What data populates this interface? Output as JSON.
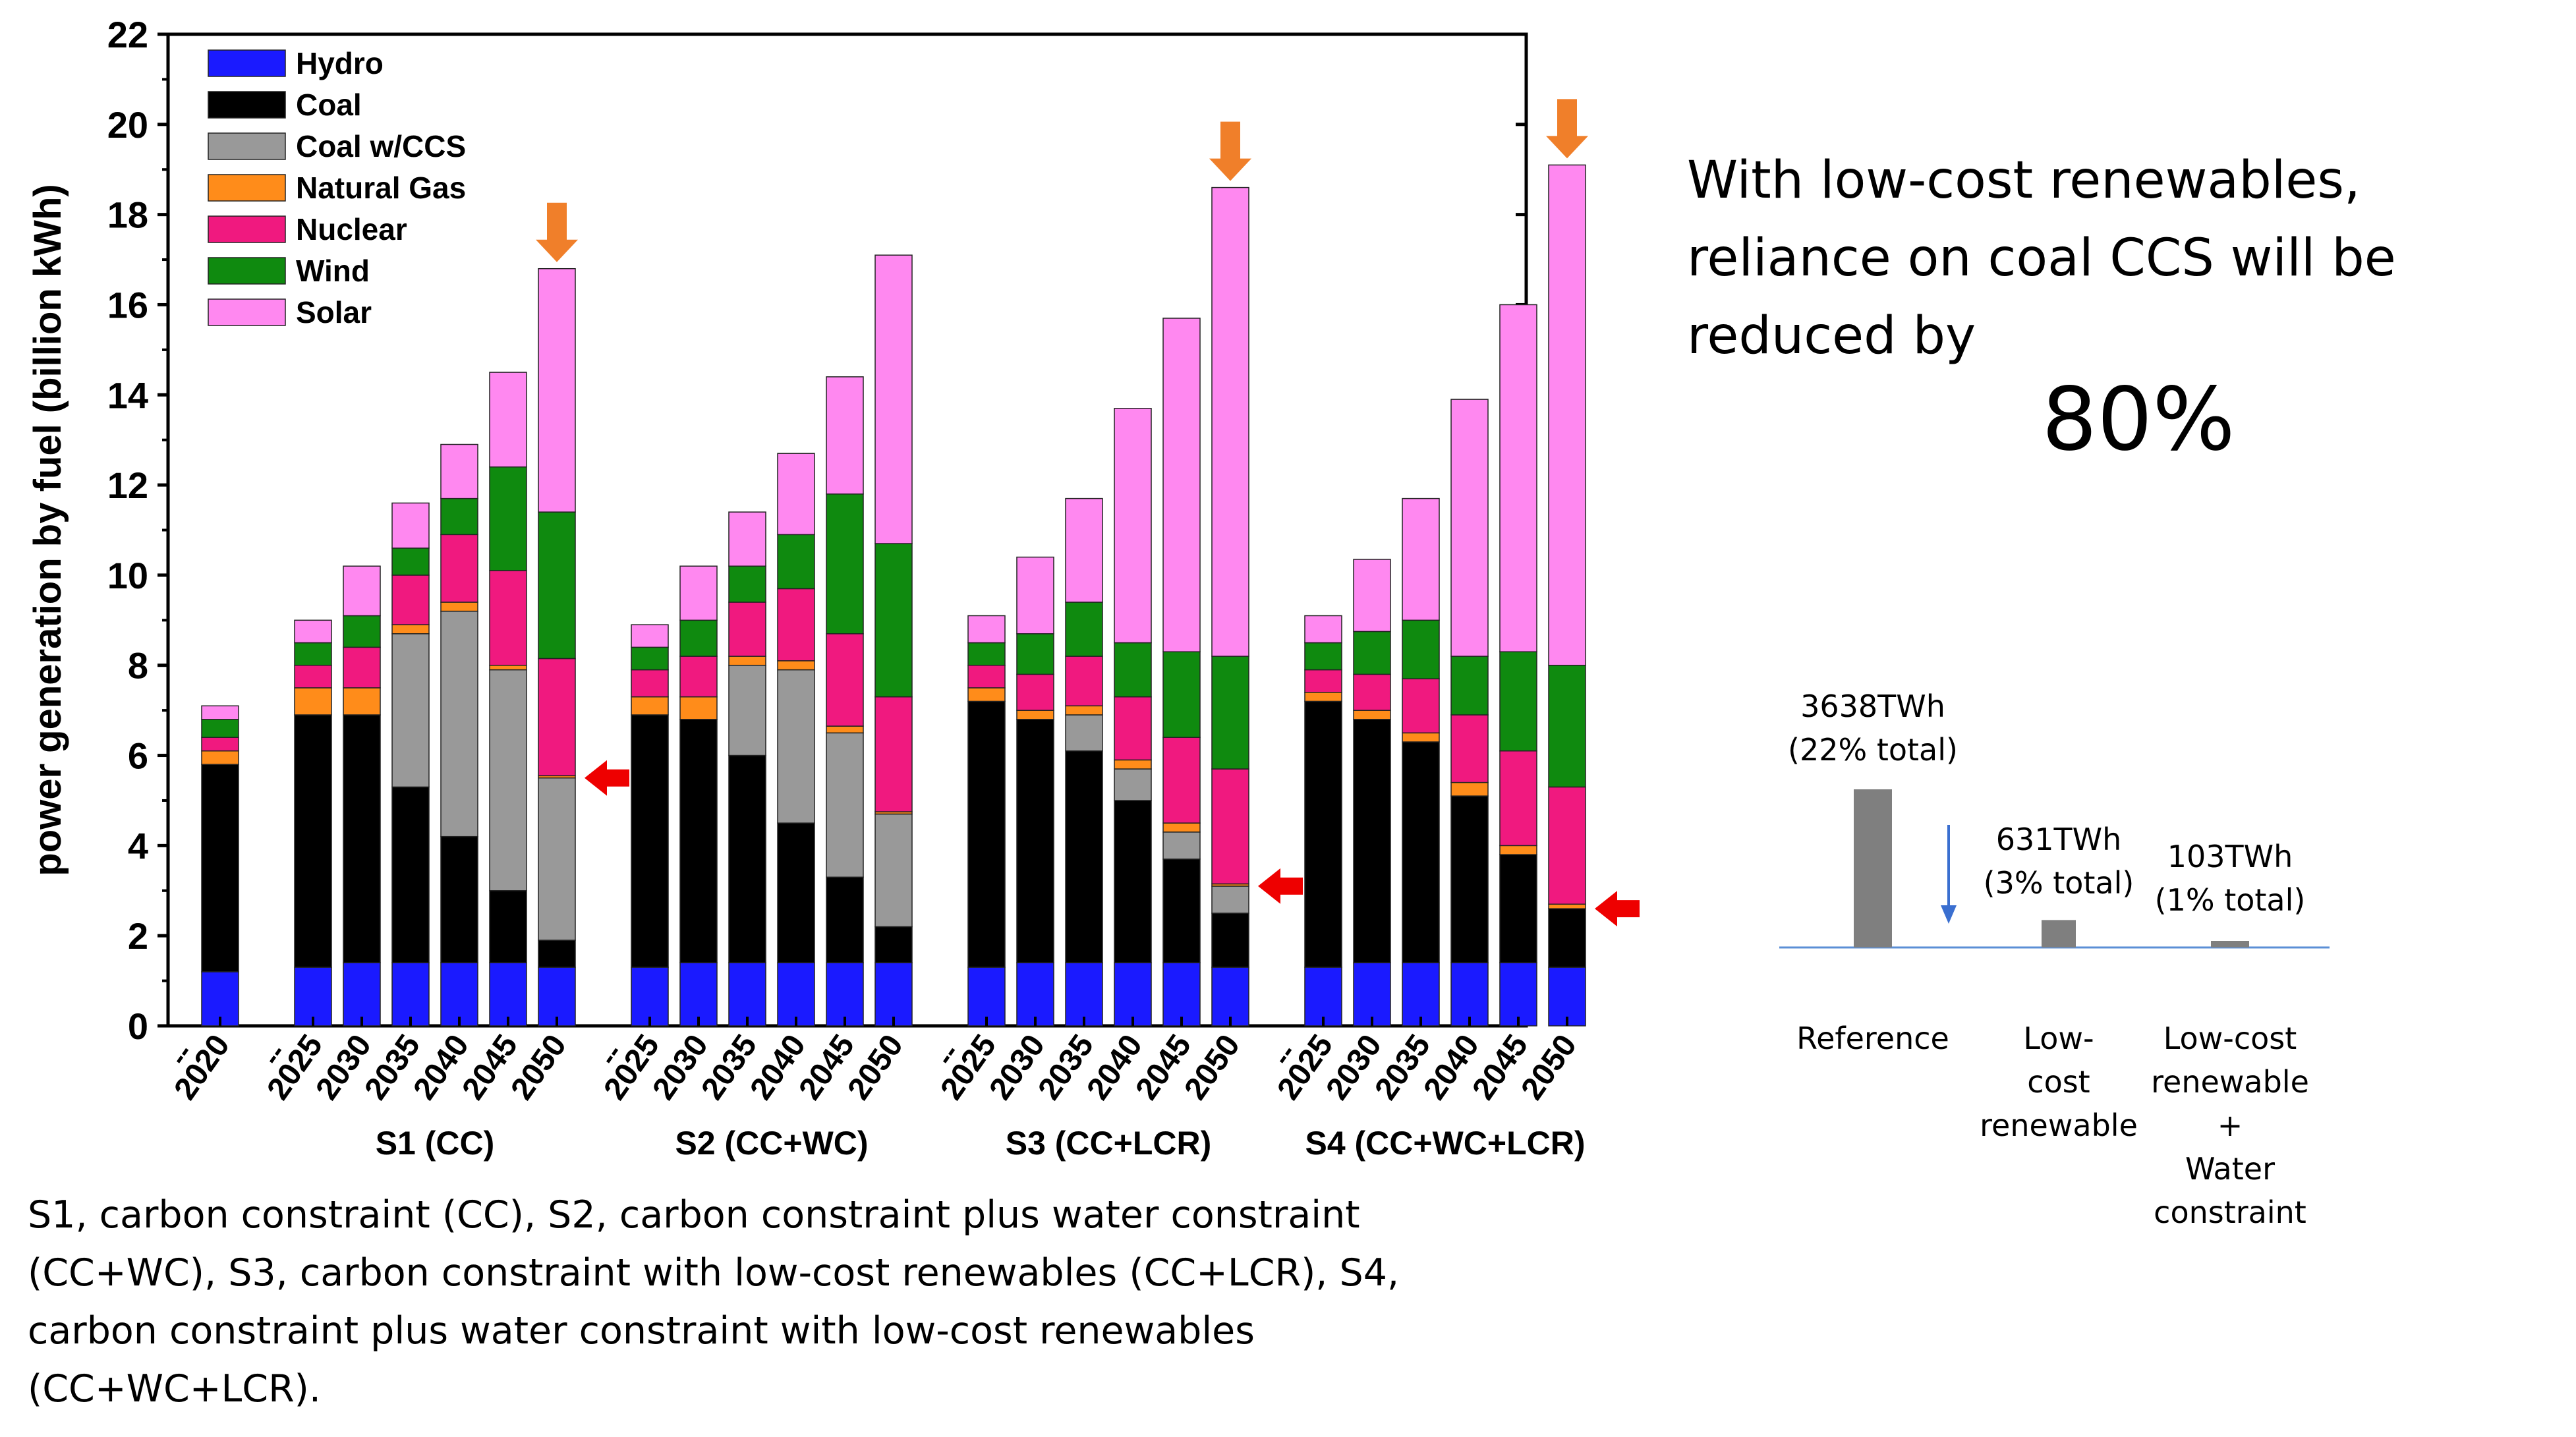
{
  "chart_data": {
    "type": "bar",
    "stacked": true,
    "ylabel": "power generation by fuel (billion kWh)",
    "ylim": [
      0,
      22
    ],
    "yticks": [
      "0",
      "2",
      "4",
      "6",
      "8",
      "10",
      "12",
      "14",
      "16",
      "18",
      "20",
      "22"
    ],
    "legend": [
      {
        "name": "Hydro",
        "color": "#1a1aff"
      },
      {
        "name": "Coal",
        "color": "#000000"
      },
      {
        "name": "Coal w/CCS",
        "color": "#999999"
      },
      {
        "name": "Natural Gas",
        "color": "#ff8c1a"
      },
      {
        "name": "Nuclear",
        "color": "#f0197f"
      },
      {
        "name": "Wind",
        "color": "#0f8a0f"
      },
      {
        "name": "Solar",
        "color": "#ff88f0"
      }
    ],
    "groups": [
      {
        "name": "",
        "years": [
          "2020"
        ],
        "bars": [
          [
            1.2,
            4.6,
            0,
            0.3,
            0.3,
            0.4,
            0.3
          ]
        ]
      },
      {
        "name": "S1 (CC)",
        "years": [
          "2025",
          "2030",
          "2035",
          "2040",
          "2045",
          "2050"
        ],
        "bars": [
          [
            1.3,
            5.6,
            0,
            0.6,
            0.5,
            0.5,
            0.5
          ],
          [
            1.4,
            5.5,
            0,
            0.6,
            0.9,
            0.7,
            1.1
          ],
          [
            1.4,
            3.9,
            3.4,
            0.2,
            1.1,
            0.6,
            1.0
          ],
          [
            1.4,
            2.8,
            5.0,
            0.2,
            1.5,
            0.8,
            1.2
          ],
          [
            1.4,
            1.6,
            4.9,
            0.1,
            2.1,
            2.3,
            2.1
          ],
          [
            1.3,
            0.6,
            3.6,
            0.05,
            2.6,
            3.25,
            5.4
          ]
        ]
      },
      {
        "name": "S2 (CC+WC)",
        "years": [
          "2025",
          "2030",
          "2035",
          "2040",
          "2045",
          "2050"
        ],
        "bars": [
          [
            1.3,
            5.6,
            0,
            0.4,
            0.6,
            0.5,
            0.5
          ],
          [
            1.4,
            5.4,
            0,
            0.5,
            0.9,
            0.8,
            1.2
          ],
          [
            1.4,
            4.6,
            2.0,
            0.2,
            1.2,
            0.8,
            1.2
          ],
          [
            1.4,
            3.1,
            3.4,
            0.2,
            1.6,
            1.2,
            1.8
          ],
          [
            1.4,
            1.9,
            3.2,
            0.15,
            2.05,
            3.1,
            2.6
          ],
          [
            1.4,
            0.8,
            2.5,
            0.05,
            2.55,
            3.4,
            6.4
          ]
        ]
      },
      {
        "name": "S3 (CC+LCR)",
        "years": [
          "2025",
          "2030",
          "2035",
          "2040",
          "2045",
          "2050"
        ],
        "bars": [
          [
            1.3,
            5.9,
            0,
            0.3,
            0.5,
            0.5,
            0.6
          ],
          [
            1.4,
            5.4,
            0,
            0.2,
            0.8,
            0.9,
            1.7
          ],
          [
            1.4,
            4.7,
            0.8,
            0.2,
            1.1,
            1.2,
            2.3
          ],
          [
            1.4,
            3.6,
            0.7,
            0.2,
            1.4,
            1.2,
            5.2
          ],
          [
            1.4,
            2.3,
            0.6,
            0.2,
            1.9,
            1.9,
            7.4
          ],
          [
            1.3,
            1.2,
            0.6,
            0.05,
            2.55,
            2.5,
            10.4
          ]
        ]
      },
      {
        "name": "S4 (CC+WC+LCR)",
        "years": [
          "2025",
          "2030",
          "2035",
          "2040",
          "2045",
          "2050"
        ],
        "bars": [
          [
            1.3,
            5.9,
            0,
            0.2,
            0.5,
            0.6,
            0.6
          ],
          [
            1.4,
            5.4,
            0,
            0.2,
            0.8,
            0.95,
            1.6
          ],
          [
            1.4,
            4.9,
            0,
            0.2,
            1.2,
            1.3,
            2.7
          ],
          [
            1.4,
            3.7,
            0,
            0.3,
            1.5,
            1.3,
            5.7
          ],
          [
            1.4,
            2.4,
            0,
            0.2,
            2.1,
            2.2,
            7.7
          ],
          [
            1.3,
            1.3,
            0,
            0.1,
            2.6,
            2.7,
            11.1
          ]
        ]
      }
    ]
  },
  "text": {
    "headline": "With low-cost renewables, reliance on coal CCS will be reduced by",
    "percent": "80%",
    "caption": "S1, carbon constraint (CC), S2, carbon constraint plus water constraint (CC+WC), S3, carbon constraint with low-cost renewables (CC+LCR), S4, carbon constraint plus water constraint with low-cost renewables (CC+WC+LCR)."
  },
  "colors": {
    "down_arrow": "#f07f2a",
    "side_arrow": "#ee0000",
    "mini_bar": "#7f7f7f",
    "mini_axis": "#5b8fd6",
    "mini_arrow": "#3a6fd0"
  },
  "mini_chart": {
    "bars": [
      {
        "value": 3638,
        "value_label": "3638TWh",
        "share_label": "(22% total)",
        "category": [
          "Reference"
        ]
      },
      {
        "value": 631,
        "value_label": "631TWh",
        "share_label": "(3% total)",
        "category": [
          "Low-",
          "cost",
          "renewable"
        ]
      },
      {
        "value": 103,
        "value_label": "103TWh",
        "share_label": "(1% total)",
        "category": [
          "Low-cost",
          "renewable",
          "+",
          "Water",
          "constraint"
        ]
      }
    ]
  }
}
